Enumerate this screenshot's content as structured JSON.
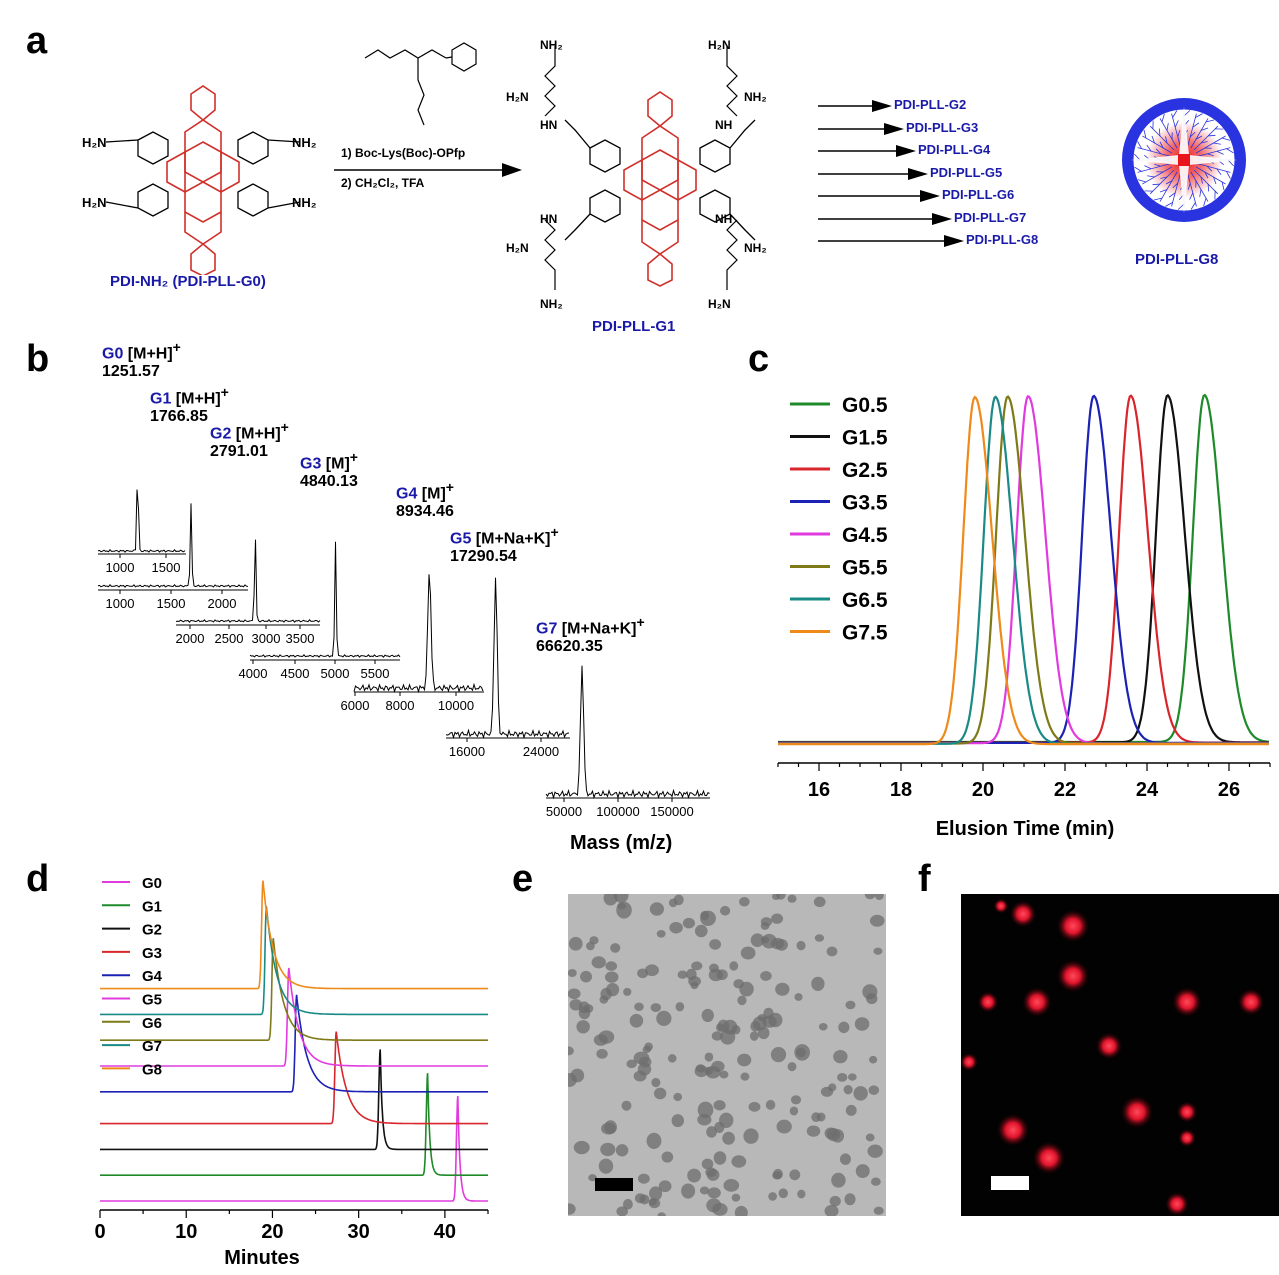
{
  "panels": {
    "a": "a",
    "b": "b",
    "c": "c",
    "d": "d",
    "e": "e",
    "f": "f"
  },
  "panel_a": {
    "reagent_line1": "1) Boc-Lys(Boc)-OPfp",
    "reagent_line2": "2) CH₂Cl₂, TFA",
    "start_label": "PDI-NH₂ (PDI-PLL-G0)",
    "product_label": "PDI-PLL-G1",
    "gen_labels": [
      "PDI-PLL-G2",
      "PDI-PLL-G3",
      "PDI-PLL-G4",
      "PDI-PLL-G5",
      "PDI-PLL-G6",
      "PDI-PLL-G7",
      "PDI-PLL-G8"
    ],
    "final_label": "PDI-PLL-G8",
    "nh2": "NH₂",
    "h2n": "H₂N",
    "nh": "NH",
    "hn": "HN"
  },
  "panel_b": {
    "xlabel": "Mass (m/z)",
    "spectra": [
      {
        "gen": "G0",
        "ion": "[M+H]",
        "charge": "+",
        "mass": "1251.57",
        "ticks": [
          "1000",
          "1500"
        ]
      },
      {
        "gen": "G1",
        "ion": "[M+H]",
        "charge": "+",
        "mass": "1766.85",
        "ticks": [
          "1000",
          "1500",
          "2000"
        ]
      },
      {
        "gen": "G2",
        "ion": "[M+H]",
        "charge": "+",
        "mass": "2791.01",
        "ticks": [
          "2000",
          "2500",
          "3000",
          "3500"
        ]
      },
      {
        "gen": "G3",
        "ion": "[M]",
        "charge": "+",
        "mass": "4840.13",
        "ticks": [
          "4000",
          "4500",
          "5000",
          "5500"
        ]
      },
      {
        "gen": "G4",
        "ion": "[M]",
        "charge": "+",
        "mass": "8934.46",
        "ticks": [
          "6000",
          "8000",
          "10000"
        ]
      },
      {
        "gen": "G5",
        "ion": "[M+Na+K]",
        "charge": "+",
        "mass": "17290.54",
        "ticks": [
          "16000",
          "24000"
        ]
      },
      {
        "gen": "G7",
        "ion": "[M+Na+K]",
        "charge": "+",
        "mass": "66620.35",
        "ticks": [
          "50000",
          "100000",
          "150000"
        ]
      }
    ]
  },
  "chart_data": [
    {
      "type": "line",
      "panel": "c",
      "xlabel": "Elusion Time (min)",
      "xlim": [
        15,
        27
      ],
      "xticks": [
        "16",
        "18",
        "20",
        "22",
        "24",
        "26"
      ],
      "legend_position": "top-left",
      "series": [
        {
          "name": "G0.5",
          "peak": 25.4,
          "color": "#1f8a2a"
        },
        {
          "name": "G1.5",
          "peak": 24.5,
          "color": "#111111"
        },
        {
          "name": "G2.5",
          "peak": 23.6,
          "color": "#d8262c"
        },
        {
          "name": "G3.5",
          "peak": 22.7,
          "color": "#1b22b4"
        },
        {
          "name": "G4.5",
          "peak": 21.1,
          "color": "#e13adf"
        },
        {
          "name": "G5.5",
          "peak": 20.6,
          "color": "#7f7a18"
        },
        {
          "name": "G6.5",
          "peak": 20.3,
          "color": "#1a8a86"
        },
        {
          "name": "G7.5",
          "peak": 19.8,
          "color": "#ee8a1a"
        }
      ]
    },
    {
      "type": "line",
      "panel": "d",
      "xlabel": "Minutes",
      "xlim": [
        0,
        45
      ],
      "xticks": [
        "0",
        "10",
        "20",
        "30",
        "40"
      ],
      "legend_position": "top-left",
      "series": [
        {
          "name": "G0",
          "peak": 41.5,
          "color": "#e13adf"
        },
        {
          "name": "G1",
          "peak": 38.0,
          "color": "#1f8a2a"
        },
        {
          "name": "G2",
          "peak": 32.5,
          "color": "#111111"
        },
        {
          "name": "G3",
          "peak": 27.4,
          "color": "#d8262c"
        },
        {
          "name": "G4",
          "peak": 22.8,
          "color": "#1b22b4"
        },
        {
          "name": "G5",
          "peak": 21.9,
          "color": "#e13adf"
        },
        {
          "name": "G6",
          "peak": 20.1,
          "color": "#7f7a18"
        },
        {
          "name": "G7",
          "peak": 19.3,
          "color": "#1a8a86"
        },
        {
          "name": "G8",
          "peak": 18.9,
          "color": "#ee8a1a"
        }
      ]
    }
  ]
}
